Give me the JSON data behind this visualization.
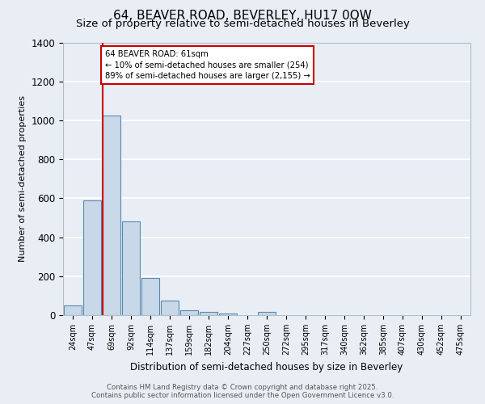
{
  "title": "64, BEAVER ROAD, BEVERLEY, HU17 0QW",
  "subtitle": "Size of property relative to semi-detached houses in Beverley",
  "xlabel": "Distribution of semi-detached houses by size in Beverley",
  "ylabel": "Number of semi-detached properties",
  "bar_values": [
    50,
    590,
    1025,
    480,
    190,
    75,
    25,
    18,
    10,
    0,
    18,
    0,
    0,
    0,
    0,
    0,
    0,
    0,
    0,
    0,
    0
  ],
  "bar_labels": [
    "24sqm",
    "47sqm",
    "69sqm",
    "92sqm",
    "114sqm",
    "137sqm",
    "159sqm",
    "182sqm",
    "204sqm",
    "227sqm",
    "250sqm",
    "272sqm",
    "295sqm",
    "317sqm",
    "340sqm",
    "362sqm",
    "385sqm",
    "407sqm",
    "430sqm",
    "452sqm",
    "475sqm"
  ],
  "bar_color": "#c8d8e8",
  "bar_edge_color": "#5a8ab0",
  "ylim": [
    0,
    1400
  ],
  "yticks": [
    0,
    200,
    400,
    600,
    800,
    1000,
    1200,
    1400
  ],
  "vline_x": 1.55,
  "vline_color": "#cc0000",
  "annotation_title": "64 BEAVER ROAD: 61sqm",
  "annotation_line1": "← 10% of semi-detached houses are smaller (254)",
  "annotation_line2": "89% of semi-detached houses are larger (2,155) →",
  "annotation_box_color": "#cc0000",
  "background_color": "#e8eef4",
  "footer_line1": "Contains HM Land Registry data © Crown copyright and database right 2025.",
  "footer_line2": "Contains public sector information licensed under the Open Government Licence v3.0.",
  "grid_color": "#ffffff",
  "title_fontsize": 11,
  "subtitle_fontsize": 9.5
}
